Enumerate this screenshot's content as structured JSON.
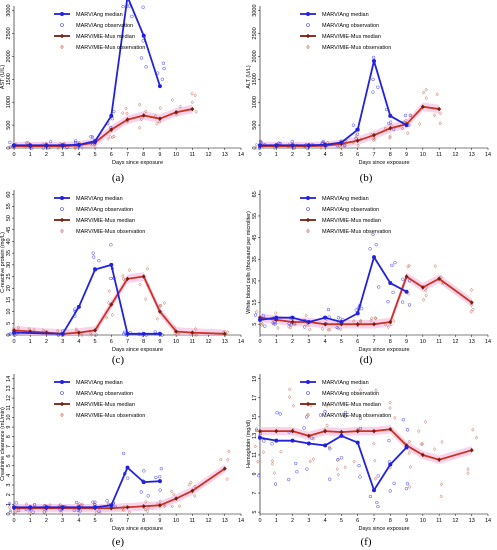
{
  "colors": {
    "ang": "#2222dd",
    "ang_obs": "#3b3bff",
    "mus": "#7a1f10",
    "mus_ribbon": "#cc3322",
    "obs_mus": "#c0654f",
    "ribbon": "#f4c2e4"
  },
  "legend": {
    "ang_median": "MARV/Ang median",
    "ang_obs": "MARV/Ang observation",
    "mus_median": "MARV/MIE-Mus median",
    "mus_obs": "MARV/MIE-Mus observation"
  },
  "chart_data": [
    {
      "panel": "(a)",
      "type": "line",
      "xlabel": "Days since exposure",
      "ylabel": "AST (U/L)",
      "xlim": [
        0,
        14
      ],
      "ylim": [
        0,
        3100
      ],
      "yticks": [
        0,
        500,
        1000,
        1500,
        2000,
        2500,
        3000
      ],
      "series": [
        {
          "name": "MARV/Ang median",
          "x": [
            0,
            1,
            2,
            3,
            4,
            5,
            6,
            7,
            8,
            9
          ],
          "y": [
            60,
            60,
            60,
            60,
            70,
            150,
            700,
            3300,
            2450,
            1350
          ]
        },
        {
          "name": "MARV/MIE-Mus median",
          "x": [
            0,
            1,
            2,
            3,
            4,
            5,
            6,
            7,
            8,
            9,
            10,
            11
          ],
          "y": [
            40,
            40,
            40,
            40,
            60,
            120,
            400,
            620,
            710,
            640,
            780,
            850
          ]
        }
      ]
    },
    {
      "panel": "(b)",
      "type": "line",
      "xlabel": "Days since exposure",
      "ylabel": "ALT (U/L)",
      "xlim": [
        0,
        14
      ],
      "ylim": [
        0,
        3100
      ],
      "yticks": [
        0,
        500,
        1000,
        1500,
        2000,
        2500,
        3000
      ],
      "series": [
        {
          "name": "MARV/Ang median",
          "x": [
            0,
            1,
            2,
            3,
            4,
            5,
            6,
            7,
            8,
            9
          ],
          "y": [
            60,
            60,
            60,
            60,
            70,
            120,
            400,
            1900,
            700,
            500
          ]
        },
        {
          "name": "MARV/MIE-Mus median",
          "x": [
            0,
            1,
            2,
            3,
            4,
            5,
            6,
            7,
            8,
            9,
            10,
            11
          ],
          "y": [
            40,
            40,
            40,
            40,
            50,
            90,
            160,
            280,
            430,
            520,
            900,
            850
          ]
        }
      ]
    },
    {
      "panel": "(c)",
      "type": "line",
      "xlabel": "Days since exposure",
      "ylabel": "C-reactive protein (mg/L)",
      "xlim": [
        0,
        14
      ],
      "ylim": [
        0,
        62
      ],
      "yticks": [
        0,
        5,
        10,
        15,
        20,
        25,
        30,
        35,
        40,
        45,
        50,
        55,
        60
      ],
      "series": [
        {
          "name": "MARV/Ang median",
          "x": [
            0,
            3,
            4,
            5,
            6,
            7,
            8,
            9
          ],
          "y": [
            1,
            0.5,
            12,
            28,
            30,
            0.5,
            0.5,
            0.5
          ]
        },
        {
          "name": "MARV/MIE-Mus median",
          "x": [
            0,
            1,
            2,
            3,
            4,
            5,
            6,
            7,
            8,
            9,
            10,
            11,
            13
          ],
          "y": [
            2,
            1.5,
            1,
            0.5,
            1,
            2,
            13,
            24,
            25,
            10,
            1.5,
            1,
            0.5
          ]
        }
      ]
    },
    {
      "panel": "(d)",
      "type": "line",
      "xlabel": "Days since exposure",
      "ylabel": "White blood cells (thousand per microliter)",
      "xlim": [
        0,
        14
      ],
      "ylim": [
        0,
        67
      ],
      "yticks": [
        5,
        15,
        25,
        35,
        45,
        55,
        65
      ],
      "series": [
        {
          "name": "MARV/Ang median",
          "x": [
            0,
            1,
            2,
            3,
            4,
            5,
            6,
            7,
            8,
            9
          ],
          "y": [
            7,
            8,
            8,
            6,
            8,
            6,
            10,
            36,
            24,
            20
          ]
        },
        {
          "name": "MARV/MIE-Mus median",
          "x": [
            0,
            1,
            2,
            3,
            4,
            5,
            6,
            7,
            8,
            9,
            10,
            11,
            13
          ],
          "y": [
            8,
            7,
            6,
            6,
            5,
            5,
            5,
            5,
            6,
            27,
            22,
            26,
            15
          ]
        }
      ]
    },
    {
      "panel": "(e)",
      "type": "line",
      "xlabel": "Days since exposure",
      "ylabel": "Creatinine clearance (mL/min)",
      "xlim": [
        0,
        14
      ],
      "ylim": [
        0,
        14.5
      ],
      "yticks": [
        0,
        1,
        2,
        3,
        4,
        5,
        6,
        7,
        8,
        9,
        10,
        11,
        12,
        13,
        14
      ],
      "series": [
        {
          "name": "MARV/Ang median",
          "x": [
            0,
            1,
            2,
            3,
            4,
            5,
            6,
            7,
            8,
            9
          ],
          "y": [
            0.7,
            0.7,
            0.7,
            0.7,
            0.7,
            0.7,
            0.9,
            4.8,
            3.3,
            3.4
          ]
        },
        {
          "name": "MARV/MIE-Mus median",
          "x": [
            0,
            1,
            2,
            3,
            4,
            5,
            6,
            7,
            8,
            9,
            10,
            11,
            13
          ],
          "y": [
            0.6,
            0.6,
            0.6,
            0.6,
            0.6,
            0.6,
            0.6,
            0.7,
            0.8,
            0.9,
            1.6,
            2.4,
            4.7
          ]
        }
      ]
    },
    {
      "panel": "(f)",
      "type": "line",
      "xlabel": "Days since exposure",
      "ylabel": "Hemoglobin (mg/dl)",
      "xlim": [
        0,
        14
      ],
      "ylim": [
        4.8,
        19.5
      ],
      "yticks": [
        5,
        7,
        9,
        11,
        13,
        15,
        17,
        19
      ],
      "series": [
        {
          "name": "MARV/Ang median",
          "x": [
            0,
            1,
            2,
            3,
            4,
            5,
            6,
            7,
            8,
            9
          ],
          "y": [
            12.8,
            12.5,
            12.5,
            12.2,
            12,
            13,
            12.3,
            7.3,
            10,
            11.8
          ]
        },
        {
          "name": "MARV/MIE-Mus median",
          "x": [
            0,
            1,
            2,
            3,
            4,
            5,
            6,
            7,
            8,
            9,
            10,
            11,
            13
          ],
          "y": [
            13.5,
            13.5,
            13.5,
            13,
            13.5,
            13.4,
            13.5,
            13.5,
            13.7,
            12,
            11,
            10.5,
            11.5
          ]
        }
      ]
    }
  ]
}
